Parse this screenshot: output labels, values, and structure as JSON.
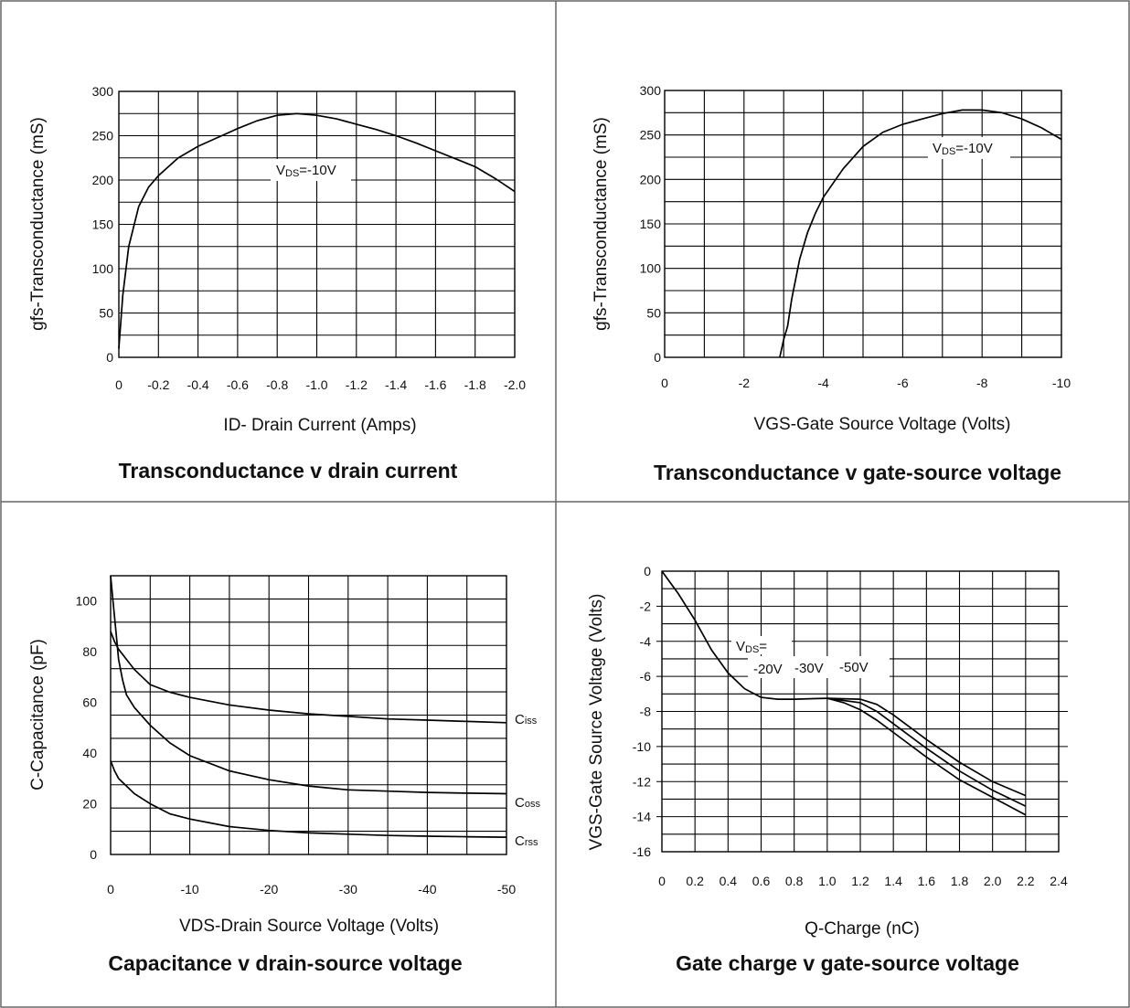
{
  "chart_data": [
    {
      "type": "line",
      "title": "Transconductance v drain current",
      "xlabel": "ID- Drain Current (Amps)",
      "ylabel": "gfs-Transconductance (mS)",
      "xlim": [
        0,
        -2.0
      ],
      "ylim": [
        0,
        300
      ],
      "x_ticks": [
        "0",
        "-0.2",
        "-0.4",
        "-0.6",
        "-0.8",
        "-1.0",
        "-1.2",
        "-1.4",
        "-1.6",
        "-1.8",
        "-2.0"
      ],
      "y_ticks": [
        "0",
        "50",
        "100",
        "150",
        "200",
        "250",
        "300"
      ],
      "grid": true,
      "annotations": [
        "VDS=-10V"
      ],
      "series": [
        {
          "x": [
            0,
            -0.02,
            -0.05,
            -0.1,
            -0.15,
            -0.2,
            -0.3,
            -0.4,
            -0.5,
            -0.6,
            -0.7,
            -0.8,
            -0.9,
            -1.0,
            -1.1,
            -1.2,
            -1.3,
            -1.4,
            -1.5,
            -1.6,
            -1.7,
            -1.8,
            -1.9,
            -2.0
          ],
          "y": [
            10,
            70,
            125,
            170,
            192,
            205,
            225,
            238,
            248,
            258,
            267,
            273,
            275,
            273,
            269,
            263,
            257,
            250,
            242,
            233,
            224,
            215,
            202,
            187
          ]
        }
      ]
    },
    {
      "type": "line",
      "title": "Transconductance v gate-source voltage",
      "xlabel": "VGS-Gate Source Voltage (Volts)",
      "ylabel": "gfs-Transconductance (mS)",
      "xlim": [
        0,
        -10
      ],
      "ylim": [
        0,
        300
      ],
      "x_ticks": [
        "0",
        "-2",
        "-4",
        "-6",
        "-8",
        "-10"
      ],
      "y_ticks": [
        "0",
        "50",
        "100",
        "150",
        "200",
        "250",
        "300"
      ],
      "grid": true,
      "annotations": [
        "VDS=-10V"
      ],
      "series": [
        {
          "x": [
            -2.9,
            -3.0,
            -3.1,
            -3.2,
            -3.4,
            -3.6,
            -3.8,
            -4.0,
            -4.5,
            -5.0,
            -5.5,
            -6.0,
            -6.5,
            -7.0,
            -7.5,
            -8.0,
            -8.5,
            -9.0,
            -9.5,
            -10.0
          ],
          "y": [
            0,
            20,
            35,
            65,
            110,
            140,
            162,
            180,
            212,
            237,
            253,
            262,
            268,
            274,
            278,
            278,
            275,
            268,
            258,
            245
          ]
        }
      ]
    },
    {
      "type": "line",
      "title": "Capacitance v drain-source voltage",
      "xlabel": "VDS-Drain Source Voltage (Volts)",
      "ylabel": "C-Capacitance (pF)",
      "xlim": [
        0,
        -50
      ],
      "ylim": [
        0,
        110
      ],
      "x_ticks": [
        "0",
        "-10",
        "-20",
        "-30",
        "-40",
        "-50"
      ],
      "y_ticks": [
        "0",
        "20",
        "40",
        "60",
        "80",
        "100"
      ],
      "grid": true,
      "series": [
        {
          "name": "Ciss",
          "x": [
            0,
            -0.5,
            -1,
            -2,
            -3,
            -5,
            -7.5,
            -10,
            -15,
            -20,
            -25,
            -30,
            -35,
            -40,
            -45,
            -50
          ],
          "y": [
            88,
            84,
            81,
            77,
            73,
            67,
            64,
            62,
            59,
            57,
            55.5,
            54.5,
            53.5,
            53,
            52.5,
            52
          ]
        },
        {
          "name": "Coss",
          "x": [
            0,
            -0.3,
            -0.7,
            -1,
            -1.5,
            -2,
            -3,
            -5,
            -7.5,
            -10,
            -15,
            -20,
            -25,
            -30,
            -35,
            -40,
            -45,
            -50
          ],
          "y": [
            110,
            100,
            87,
            77,
            69,
            63,
            58,
            51,
            44,
            39,
            33,
            29.5,
            27,
            25.5,
            25,
            24.5,
            24.2,
            24
          ]
        },
        {
          "name": "Crss",
          "x": [
            0,
            -0.5,
            -1,
            -2,
            -3,
            -5,
            -7.5,
            -10,
            -15,
            -20,
            -25,
            -30,
            -35,
            -40,
            -45,
            -50
          ],
          "y": [
            37,
            33,
            30,
            27,
            24,
            20,
            16,
            14,
            11,
            9.5,
            8.5,
            8,
            7.5,
            7.2,
            7,
            6.8
          ]
        }
      ],
      "legend_labels": [
        {
          "base": "C",
          "sub": "iss"
        },
        {
          "base": "C",
          "sub": "oss"
        },
        {
          "base": "C",
          "sub": "rss"
        }
      ]
    },
    {
      "type": "line",
      "title": "Gate charge v gate-source voltage",
      "xlabel": "Q-Charge (nC)",
      "ylabel": "VGS-Gate Source Voltage (Volts)",
      "xlim": [
        0,
        2.4
      ],
      "ylim": [
        -16,
        0
      ],
      "x_ticks": [
        "0",
        "0.2",
        "0.4",
        "0.6",
        "0.8",
        "1.0",
        "1.2",
        "1.4",
        "1.6",
        "1.8",
        "2.0",
        "2.2",
        "2.4"
      ],
      "y_ticks": [
        "0",
        "-2",
        "-4",
        "-6",
        "-8",
        "-10",
        "-12",
        "-14",
        "-16"
      ],
      "grid": true,
      "annotations": [
        "VDS=",
        "-20V",
        "-30V",
        "-50V"
      ],
      "series": [
        {
          "name": "-20V",
          "x": [
            0,
            0.1,
            0.2,
            0.3,
            0.4,
            0.5,
            0.6,
            0.7,
            0.8,
            1.0,
            1.1,
            1.2,
            1.3,
            1.4,
            1.6,
            1.8,
            2.0,
            2.2
          ],
          "y": [
            0,
            -1.3,
            -2.8,
            -4.5,
            -5.8,
            -6.7,
            -7.2,
            -7.3,
            -7.3,
            -7.25,
            -7.5,
            -7.9,
            -8.5,
            -9.2,
            -10.6,
            -11.9,
            -12.9,
            -13.9
          ]
        },
        {
          "name": "-30V",
          "x": [
            1.0,
            1.2,
            1.3,
            1.4,
            1.6,
            1.8,
            2.0,
            2.2
          ],
          "y": [
            -7.25,
            -7.5,
            -8.0,
            -8.7,
            -10.1,
            -11.4,
            -12.5,
            -13.4
          ]
        },
        {
          "name": "-50V",
          "x": [
            1.0,
            1.2,
            1.3,
            1.4,
            1.6,
            1.8,
            2.0,
            2.2
          ],
          "y": [
            -7.25,
            -7.3,
            -7.6,
            -8.2,
            -9.6,
            -10.9,
            -12.0,
            -12.8
          ]
        }
      ]
    }
  ]
}
